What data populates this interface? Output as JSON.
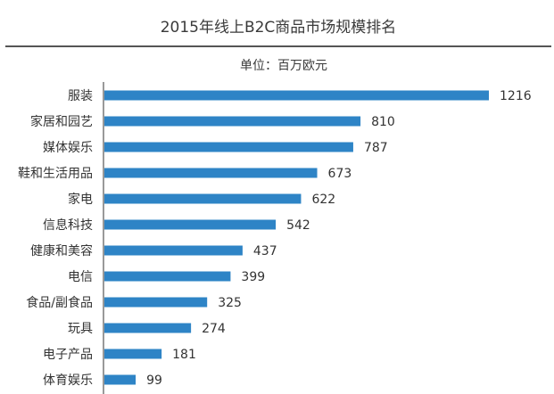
{
  "chart_data": {
    "type": "bar",
    "orientation": "horizontal",
    "title": "2015年线上B2C商品市场规模排名",
    "subtitle": "单位：百万欧元",
    "categories": [
      "服装",
      "家居和园艺",
      "媒体娱乐",
      "鞋和生活用品",
      "家电",
      "信息科技",
      "健康和美容",
      "电信",
      "食品/副食品",
      "玩具",
      "电子产品",
      "体育娱乐"
    ],
    "values": [
      1216,
      810,
      787,
      673,
      622,
      542,
      437,
      399,
      325,
      274,
      181,
      99
    ],
    "xlim": [
      0,
      1216
    ],
    "grid": false,
    "legend": "none",
    "colors": {
      "bar": "#2e84c6",
      "axis": "#333333",
      "title_rule": "#555555",
      "text": "#333333"
    }
  }
}
